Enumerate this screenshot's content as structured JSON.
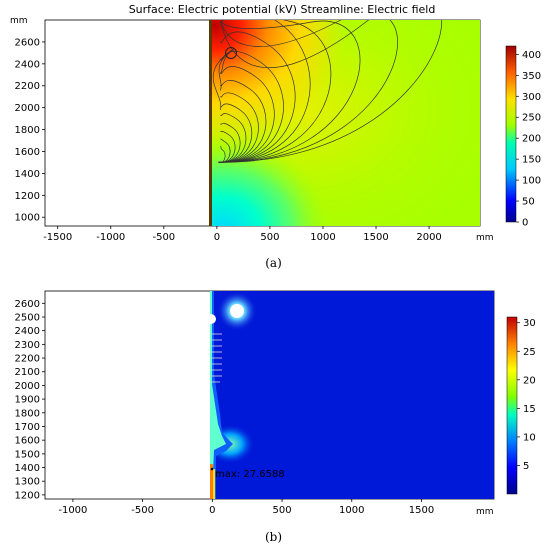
{
  "chart_data": [
    {
      "type": "heatmap",
      "panel_label": "(a)",
      "title": "Surface: Electric potential (kV)  Streamline: Electric field",
      "unit": "mm",
      "x_ticks": [
        -1500,
        -1000,
        -500,
        0,
        500,
        1000,
        1500,
        2000
      ],
      "y_ticks": [
        1000,
        1200,
        1400,
        1600,
        1800,
        2000,
        2200,
        2400,
        2600
      ],
      "xlim": [
        -1620,
        2480
      ],
      "ylim": [
        920,
        2800
      ],
      "colorbar": {
        "ticks": [
          0,
          50,
          100,
          150,
          200,
          250,
          300,
          350,
          400
        ],
        "range": [
          0,
          420
        ],
        "colormap": "rainbow"
      },
      "features": {
        "electrode_ring_center": [
          200,
          2540
        ],
        "electrode_tip": [
          15,
          1520
        ],
        "streamlines": true,
        "left_region_blank_x_below": 0
      }
    },
    {
      "type": "heatmap",
      "panel_label": "(b)",
      "unit": "mm",
      "x_ticks": [
        -1000,
        -500,
        0,
        500,
        1000,
        1500
      ],
      "y_ticks": [
        1200,
        1300,
        1400,
        1500,
        1600,
        1700,
        1800,
        1900,
        2000,
        2100,
        2200,
        2300,
        2400,
        2500,
        2600
      ],
      "xlim": [
        -1200,
        2020
      ],
      "ylim": [
        1170,
        2690
      ],
      "colorbar": {
        "ticks": [
          5,
          10,
          15,
          20,
          25,
          30
        ],
        "range": [
          0,
          31
        ],
        "colormap": "rainbow"
      },
      "annotation": {
        "text": "max: 27.6588",
        "x": 15,
        "y": 1400
      },
      "features": {
        "left_region_blank_x_below": 0
      }
    }
  ]
}
